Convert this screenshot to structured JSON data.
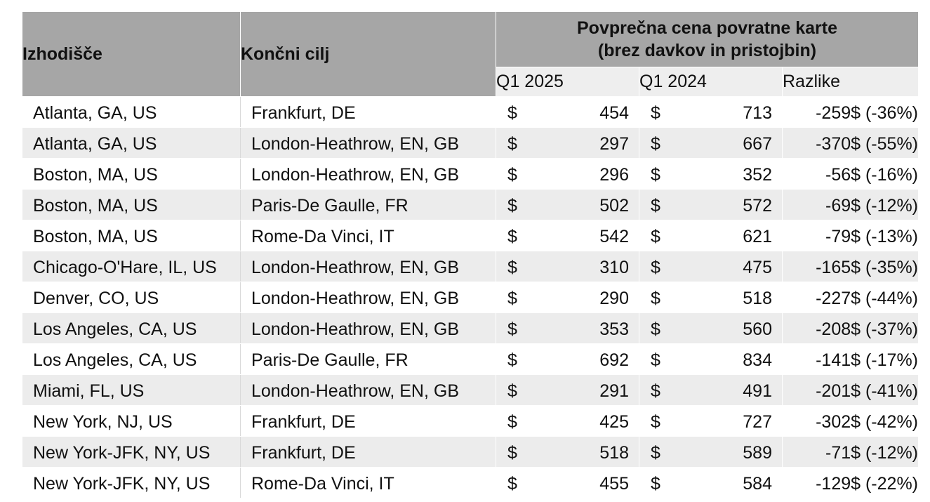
{
  "header": {
    "origin": "Izhodišče",
    "destination": "Končni cilj",
    "group_line1": "Povprečna cena povratne karte",
    "group_line2": "(brez davkov in pristojbin)",
    "q1_2025": "Q1 2025",
    "q1_2024": "Q1 2024",
    "difference": "Razlike"
  },
  "currency_symbol": "$",
  "rows": [
    {
      "origin": "Atlanta, GA, US",
      "destination": "Frankfurt, DE",
      "q1_2025": "454",
      "q1_2024": "713",
      "difference": "-259$ (-36%)"
    },
    {
      "origin": "Atlanta, GA, US",
      "destination": "London-Heathrow, EN, GB",
      "q1_2025": "297",
      "q1_2024": "667",
      "difference": "-370$ (-55%)"
    },
    {
      "origin": "Boston, MA, US",
      "destination": "London-Heathrow, EN, GB",
      "q1_2025": "296",
      "q1_2024": "352",
      "difference": "-56$ (-16%)"
    },
    {
      "origin": "Boston, MA, US",
      "destination": "Paris-De Gaulle, FR",
      "q1_2025": "502",
      "q1_2024": "572",
      "difference": "-69$ (-12%)"
    },
    {
      "origin": "Boston, MA, US",
      "destination": "Rome-Da Vinci, IT",
      "q1_2025": "542",
      "q1_2024": "621",
      "difference": "-79$ (-13%)"
    },
    {
      "origin": "Chicago-O'Hare, IL, US",
      "destination": "London-Heathrow, EN, GB",
      "q1_2025": "310",
      "q1_2024": "475",
      "difference": "-165$ (-35%)"
    },
    {
      "origin": "Denver, CO, US",
      "destination": "London-Heathrow, EN, GB",
      "q1_2025": "290",
      "q1_2024": "518",
      "difference": "-227$ (-44%)"
    },
    {
      "origin": "Los Angeles, CA, US",
      "destination": "London-Heathrow, EN, GB",
      "q1_2025": "353",
      "q1_2024": "560",
      "difference": "-208$ (-37%)"
    },
    {
      "origin": "Los Angeles, CA, US",
      "destination": "Paris-De Gaulle, FR",
      "q1_2025": "692",
      "q1_2024": "834",
      "difference": "-141$ (-17%)"
    },
    {
      "origin": "Miami, FL, US",
      "destination": "London-Heathrow, EN, GB",
      "q1_2025": "291",
      "q1_2024": "491",
      "difference": "-201$ (-41%)"
    },
    {
      "origin": "New York, NJ, US",
      "destination": "Frankfurt, DE",
      "q1_2025": "425",
      "q1_2024": "727",
      "difference": "-302$ (-42%)"
    },
    {
      "origin": "New York-JFK, NY, US",
      "destination": "Frankfurt, DE",
      "q1_2025": "518",
      "q1_2024": "589",
      "difference": "-71$ (-12%)"
    },
    {
      "origin": "New York-JFK, NY, US",
      "destination": "Rome-Da Vinci, IT",
      "q1_2025": "455",
      "q1_2024": "584",
      "difference": "-129$ (-22%)"
    }
  ]
}
